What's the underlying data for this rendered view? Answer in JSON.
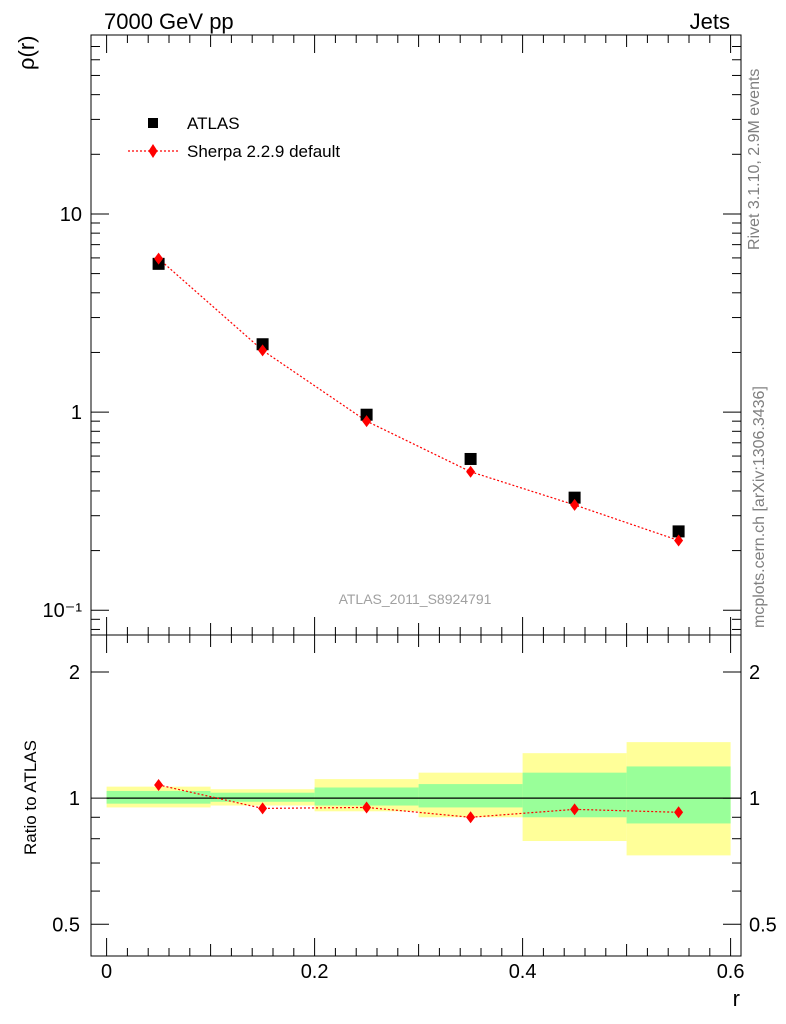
{
  "header": {
    "left": "7000 GeV pp",
    "right": "Jets"
  },
  "side": {
    "top": "Rivet 3.1.10,  2.9M events",
    "bottom": "mcplots.cern.ch [arXiv:1306.3436]"
  },
  "analysis": "ATLAS_2011_S8924791",
  "chart_data": [
    {
      "type": "scatter",
      "panel": "main",
      "ylabel": "ρ(r)",
      "yscale": "log",
      "ylim": [
        0.075,
        80
      ],
      "xlim": [
        -0.015,
        0.61
      ],
      "ytick_labels": [
        "10",
        "1",
        "10⁻¹"
      ],
      "x": [
        0.05,
        0.15,
        0.25,
        0.35,
        0.45,
        0.55
      ],
      "series": [
        {
          "name": "ATLAS",
          "color": "#000000",
          "marker": "square",
          "values": [
            5.6,
            2.2,
            0.97,
            0.58,
            0.37,
            0.25
          ]
        },
        {
          "name": "Sherpa 2.2.9 default",
          "color": "#ff0000",
          "marker": "diamond",
          "line": "dotted",
          "values": [
            5.95,
            2.05,
            0.9,
            0.5,
            0.34,
            0.225
          ]
        }
      ],
      "legend": "top-left"
    },
    {
      "type": "scatter",
      "panel": "ratio",
      "xlabel": "r",
      "ylabel": "Ratio to ATLAS",
      "ylim": [
        0.42,
        2.45
      ],
      "xlim": [
        -0.015,
        0.61
      ],
      "xtick_labels": [
        "0",
        "0.2",
        "0.4",
        "0.6"
      ],
      "ytick_labels": [
        "2",
        "1",
        "0.5"
      ],
      "x": [
        0.05,
        0.15,
        0.25,
        0.35,
        0.45,
        0.55
      ],
      "bands": {
        "edges": [
          0.0,
          0.1,
          0.2,
          0.3,
          0.4,
          0.5,
          0.6
        ],
        "green": [
          [
            0.97,
            1.04
          ],
          [
            0.98,
            1.03
          ],
          [
            0.96,
            1.06
          ],
          [
            0.95,
            1.08
          ],
          [
            0.9,
            1.15
          ],
          [
            0.87,
            1.19
          ]
        ],
        "yellow": [
          [
            0.95,
            1.065
          ],
          [
            0.96,
            1.05
          ],
          [
            0.93,
            1.11
          ],
          [
            0.9,
            1.15
          ],
          [
            0.79,
            1.28
          ],
          [
            0.73,
            1.36
          ]
        ]
      },
      "series": [
        {
          "name": "Sherpa 2.2.9 default",
          "color": "#ff0000",
          "marker": "diamond",
          "line": "dotted",
          "values": [
            1.075,
            0.945,
            0.95,
            0.9,
            0.94,
            0.925
          ]
        }
      ],
      "band_colors": {
        "green": "#99ff99",
        "yellow": "#ffff99"
      }
    }
  ]
}
